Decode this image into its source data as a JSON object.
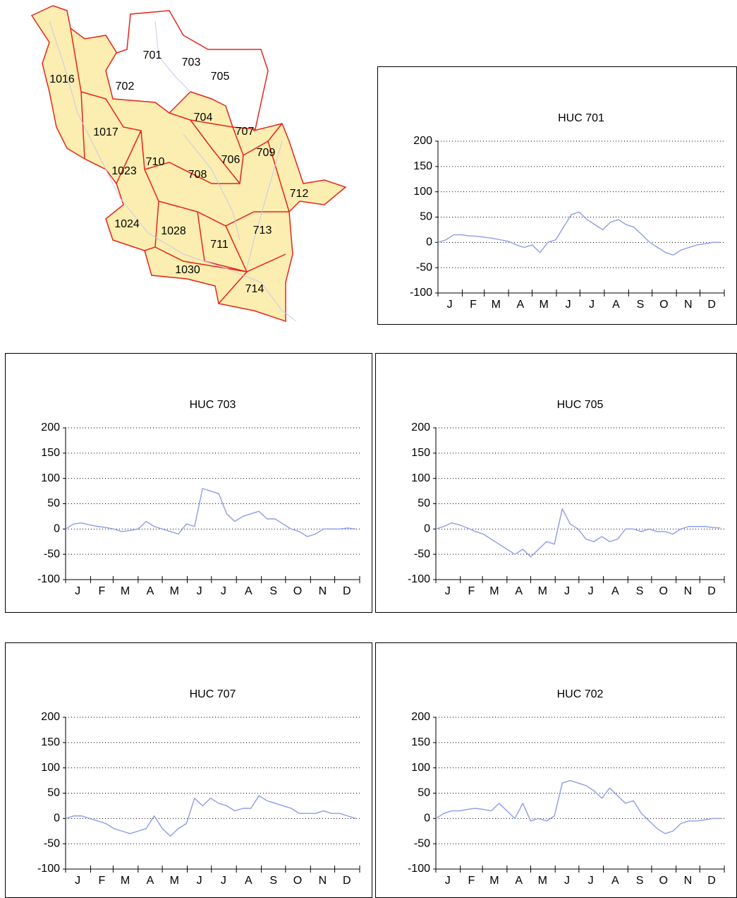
{
  "map": {
    "labels": [
      "1016",
      "702",
      "701",
      "703",
      "705",
      "704",
      "707",
      "1017",
      "709",
      "706",
      "710",
      "1023",
      "708",
      "712",
      "1024",
      "1028",
      "713",
      "711",
      "1030",
      "714"
    ]
  },
  "chart_data": [
    {
      "type": "line",
      "title": "HUC 701",
      "x": [
        0,
        10,
        20,
        30,
        40,
        50,
        60,
        70,
        80,
        90,
        100,
        110,
        120,
        130,
        140,
        150,
        160,
        170,
        180,
        190,
        200,
        210,
        220,
        230,
        240,
        250,
        260,
        270,
        280,
        290,
        300,
        310,
        320,
        330,
        340,
        350,
        360
      ],
      "series": [
        {
          "color": "#8c9de8",
          "values": [
            0,
            5,
            15,
            15,
            13,
            12,
            10,
            8,
            5,
            2,
            -5,
            -10,
            -5,
            -20,
            0,
            5,
            30,
            55,
            60,
            45,
            35,
            25,
            40,
            45,
            35,
            30,
            15,
            0,
            -10,
            -20,
            -25,
            -15,
            -10,
            -5,
            -3,
            0,
            0
          ]
        }
      ],
      "xlim": [
        0,
        365
      ],
      "xticks": [
        {
          "value": 15,
          "label": "J"
        },
        {
          "value": 45,
          "label": "F"
        },
        {
          "value": 74,
          "label": "M"
        },
        {
          "value": 105,
          "label": "A"
        },
        {
          "value": 135,
          "label": "M"
        },
        {
          "value": 166,
          "label": "J"
        },
        {
          "value": 196,
          "label": "J"
        },
        {
          "value": 227,
          "label": "A"
        },
        {
          "value": 258,
          "label": "S"
        },
        {
          "value": 288,
          "label": "O"
        },
        {
          "value": 319,
          "label": "N"
        },
        {
          "value": 349,
          "label": "D"
        }
      ],
      "xminorticks": [
        0,
        31,
        59,
        90,
        120,
        151,
        181,
        212,
        243,
        273,
        304,
        334,
        365
      ],
      "ylim": [
        -100,
        200
      ],
      "yticks": [
        -100,
        -50,
        0,
        50,
        100,
        150,
        200
      ],
      "grid": true
    },
    {
      "type": "line",
      "title": "HUC 703",
      "x": [
        0,
        10,
        20,
        30,
        40,
        50,
        60,
        70,
        80,
        90,
        100,
        110,
        120,
        130,
        140,
        150,
        160,
        170,
        180,
        190,
        200,
        210,
        220,
        230,
        240,
        250,
        260,
        270,
        280,
        290,
        300,
        310,
        320,
        330,
        340,
        350,
        360
      ],
      "series": [
        {
          "color": "#8c9de8",
          "values": [
            0,
            10,
            12,
            8,
            5,
            3,
            0,
            -5,
            -3,
            0,
            15,
            5,
            0,
            -5,
            -10,
            10,
            5,
            80,
            75,
            70,
            30,
            15,
            25,
            30,
            35,
            20,
            20,
            10,
            0,
            -5,
            -15,
            -10,
            0,
            0,
            0,
            2,
            0
          ]
        }
      ],
      "xlim": [
        0,
        365
      ],
      "xticks": [
        {
          "value": 15,
          "label": "J"
        },
        {
          "value": 45,
          "label": "F"
        },
        {
          "value": 74,
          "label": "M"
        },
        {
          "value": 105,
          "label": "A"
        },
        {
          "value": 135,
          "label": "M"
        },
        {
          "value": 166,
          "label": "J"
        },
        {
          "value": 196,
          "label": "J"
        },
        {
          "value": 227,
          "label": "A"
        },
        {
          "value": 258,
          "label": "S"
        },
        {
          "value": 288,
          "label": "O"
        },
        {
          "value": 319,
          "label": "N"
        },
        {
          "value": 349,
          "label": "D"
        }
      ],
      "xminorticks": [
        0,
        31,
        59,
        90,
        120,
        151,
        181,
        212,
        243,
        273,
        304,
        334,
        365
      ],
      "ylim": [
        -100,
        200
      ],
      "yticks": [
        -100,
        -50,
        0,
        50,
        100,
        150,
        200
      ],
      "grid": true
    },
    {
      "type": "line",
      "title": "HUC 705",
      "x": [
        0,
        10,
        20,
        30,
        40,
        50,
        60,
        70,
        80,
        90,
        100,
        110,
        120,
        130,
        140,
        150,
        160,
        170,
        180,
        190,
        200,
        210,
        220,
        230,
        240,
        250,
        260,
        270,
        280,
        290,
        300,
        310,
        320,
        330,
        340,
        350,
        360
      ],
      "series": [
        {
          "color": "#8c9de8",
          "values": [
            0,
            5,
            12,
            8,
            2,
            -5,
            -10,
            -20,
            -30,
            -40,
            -50,
            -40,
            -55,
            -40,
            -25,
            -30,
            40,
            10,
            0,
            -20,
            -25,
            -15,
            -25,
            -20,
            0,
            0,
            -5,
            0,
            -5,
            -5,
            -10,
            0,
            5,
            5,
            5,
            3,
            2
          ]
        }
      ],
      "xlim": [
        0,
        365
      ],
      "xticks": [
        {
          "value": 15,
          "label": "J"
        },
        {
          "value": 45,
          "label": "F"
        },
        {
          "value": 74,
          "label": "M"
        },
        {
          "value": 105,
          "label": "A"
        },
        {
          "value": 135,
          "label": "M"
        },
        {
          "value": 166,
          "label": "J"
        },
        {
          "value": 196,
          "label": "J"
        },
        {
          "value": 227,
          "label": "A"
        },
        {
          "value": 258,
          "label": "S"
        },
        {
          "value": 288,
          "label": "O"
        },
        {
          "value": 319,
          "label": "N"
        },
        {
          "value": 349,
          "label": "D"
        }
      ],
      "xminorticks": [
        0,
        31,
        59,
        90,
        120,
        151,
        181,
        212,
        243,
        273,
        304,
        334,
        365
      ],
      "ylim": [
        -100,
        200
      ],
      "yticks": [
        -100,
        -50,
        0,
        50,
        100,
        150,
        200
      ],
      "grid": true
    },
    {
      "type": "line",
      "title": "HUC 707",
      "x": [
        0,
        10,
        20,
        30,
        40,
        50,
        60,
        70,
        80,
        90,
        100,
        110,
        120,
        130,
        140,
        150,
        160,
        170,
        180,
        190,
        200,
        210,
        220,
        230,
        240,
        250,
        260,
        270,
        280,
        290,
        300,
        310,
        320,
        330,
        340,
        350,
        360
      ],
      "series": [
        {
          "color": "#8c9de8",
          "values": [
            0,
            5,
            5,
            0,
            -5,
            -10,
            -20,
            -25,
            -30,
            -25,
            -20,
            5,
            -20,
            -35,
            -20,
            -10,
            40,
            25,
            40,
            30,
            25,
            15,
            20,
            20,
            45,
            35,
            30,
            25,
            20,
            10,
            10,
            10,
            15,
            10,
            10,
            5,
            0
          ]
        }
      ],
      "xlim": [
        0,
        365
      ],
      "xticks": [
        {
          "value": 15,
          "label": "J"
        },
        {
          "value": 45,
          "label": "F"
        },
        {
          "value": 74,
          "label": "M"
        },
        {
          "value": 105,
          "label": "A"
        },
        {
          "value": 135,
          "label": "M"
        },
        {
          "value": 166,
          "label": "J"
        },
        {
          "value": 196,
          "label": "J"
        },
        {
          "value": 227,
          "label": "A"
        },
        {
          "value": 258,
          "label": "S"
        },
        {
          "value": 288,
          "label": "O"
        },
        {
          "value": 319,
          "label": "N"
        },
        {
          "value": 349,
          "label": "D"
        }
      ],
      "xminorticks": [
        0,
        31,
        59,
        90,
        120,
        151,
        181,
        212,
        243,
        273,
        304,
        334,
        365
      ],
      "ylim": [
        -100,
        200
      ],
      "yticks": [
        -100,
        -50,
        0,
        50,
        100,
        150,
        200
      ],
      "grid": true
    },
    {
      "type": "line",
      "title": "HUC 702",
      "x": [
        0,
        10,
        20,
        30,
        40,
        50,
        60,
        70,
        80,
        90,
        100,
        110,
        120,
        130,
        140,
        150,
        160,
        170,
        180,
        190,
        200,
        210,
        220,
        230,
        240,
        250,
        260,
        270,
        280,
        290,
        300,
        310,
        320,
        330,
        340,
        350,
        360
      ],
      "series": [
        {
          "color": "#8c9de8",
          "values": [
            0,
            10,
            15,
            15,
            18,
            20,
            18,
            15,
            30,
            15,
            0,
            30,
            -5,
            0,
            -5,
            5,
            70,
            75,
            70,
            65,
            55,
            40,
            60,
            45,
            30,
            35,
            10,
            -5,
            -20,
            -30,
            -25,
            -10,
            -5,
            -5,
            -3,
            0,
            0
          ]
        }
      ],
      "xlim": [
        0,
        365
      ],
      "xticks": [
        {
          "value": 15,
          "label": "J"
        },
        {
          "value": 45,
          "label": "F"
        },
        {
          "value": 74,
          "label": "M"
        },
        {
          "value": 105,
          "label": "A"
        },
        {
          "value": 135,
          "label": "M"
        },
        {
          "value": 166,
          "label": "J"
        },
        {
          "value": 196,
          "label": "J"
        },
        {
          "value": 227,
          "label": "A"
        },
        {
          "value": 258,
          "label": "S"
        },
        {
          "value": 288,
          "label": "O"
        },
        {
          "value": 319,
          "label": "N"
        },
        {
          "value": 349,
          "label": "D"
        }
      ],
      "xminorticks": [
        0,
        31,
        59,
        90,
        120,
        151,
        181,
        212,
        243,
        273,
        304,
        334,
        365
      ],
      "ylim": [
        -100,
        200
      ],
      "yticks": [
        -100,
        -50,
        0,
        50,
        100,
        150,
        200
      ],
      "grid": true
    }
  ]
}
